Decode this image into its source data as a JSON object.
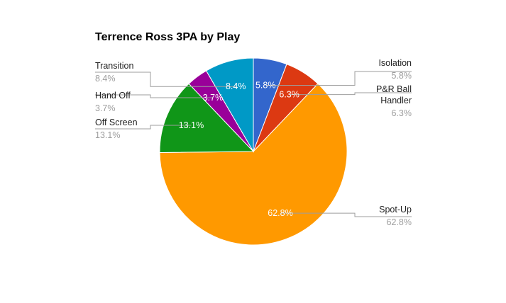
{
  "chart_data": {
    "type": "pie",
    "title": "Terrence Ross 3PA by Play",
    "slices": [
      {
        "label": "Isolation",
        "value": 5.8,
        "display": "5.8%",
        "color": "#3366cc"
      },
      {
        "label": "P&R Ball Handler",
        "value": 6.3,
        "display": "6.3%",
        "color": "#dc3912"
      },
      {
        "label": "Spot-Up",
        "value": 62.8,
        "display": "62.8%",
        "color": "#ff9900"
      },
      {
        "label": "Off Screen",
        "value": 13.1,
        "display": "13.1%",
        "color": "#109618"
      },
      {
        "label": "Hand Off",
        "value": 3.7,
        "display": "3.7%",
        "color": "#990099"
      },
      {
        "label": "Transition",
        "value": 8.4,
        "display": "8.4%",
        "color": "#0099c6"
      }
    ],
    "start_angle_deg": 0,
    "direction": "clockwise",
    "legend": "labeled"
  }
}
